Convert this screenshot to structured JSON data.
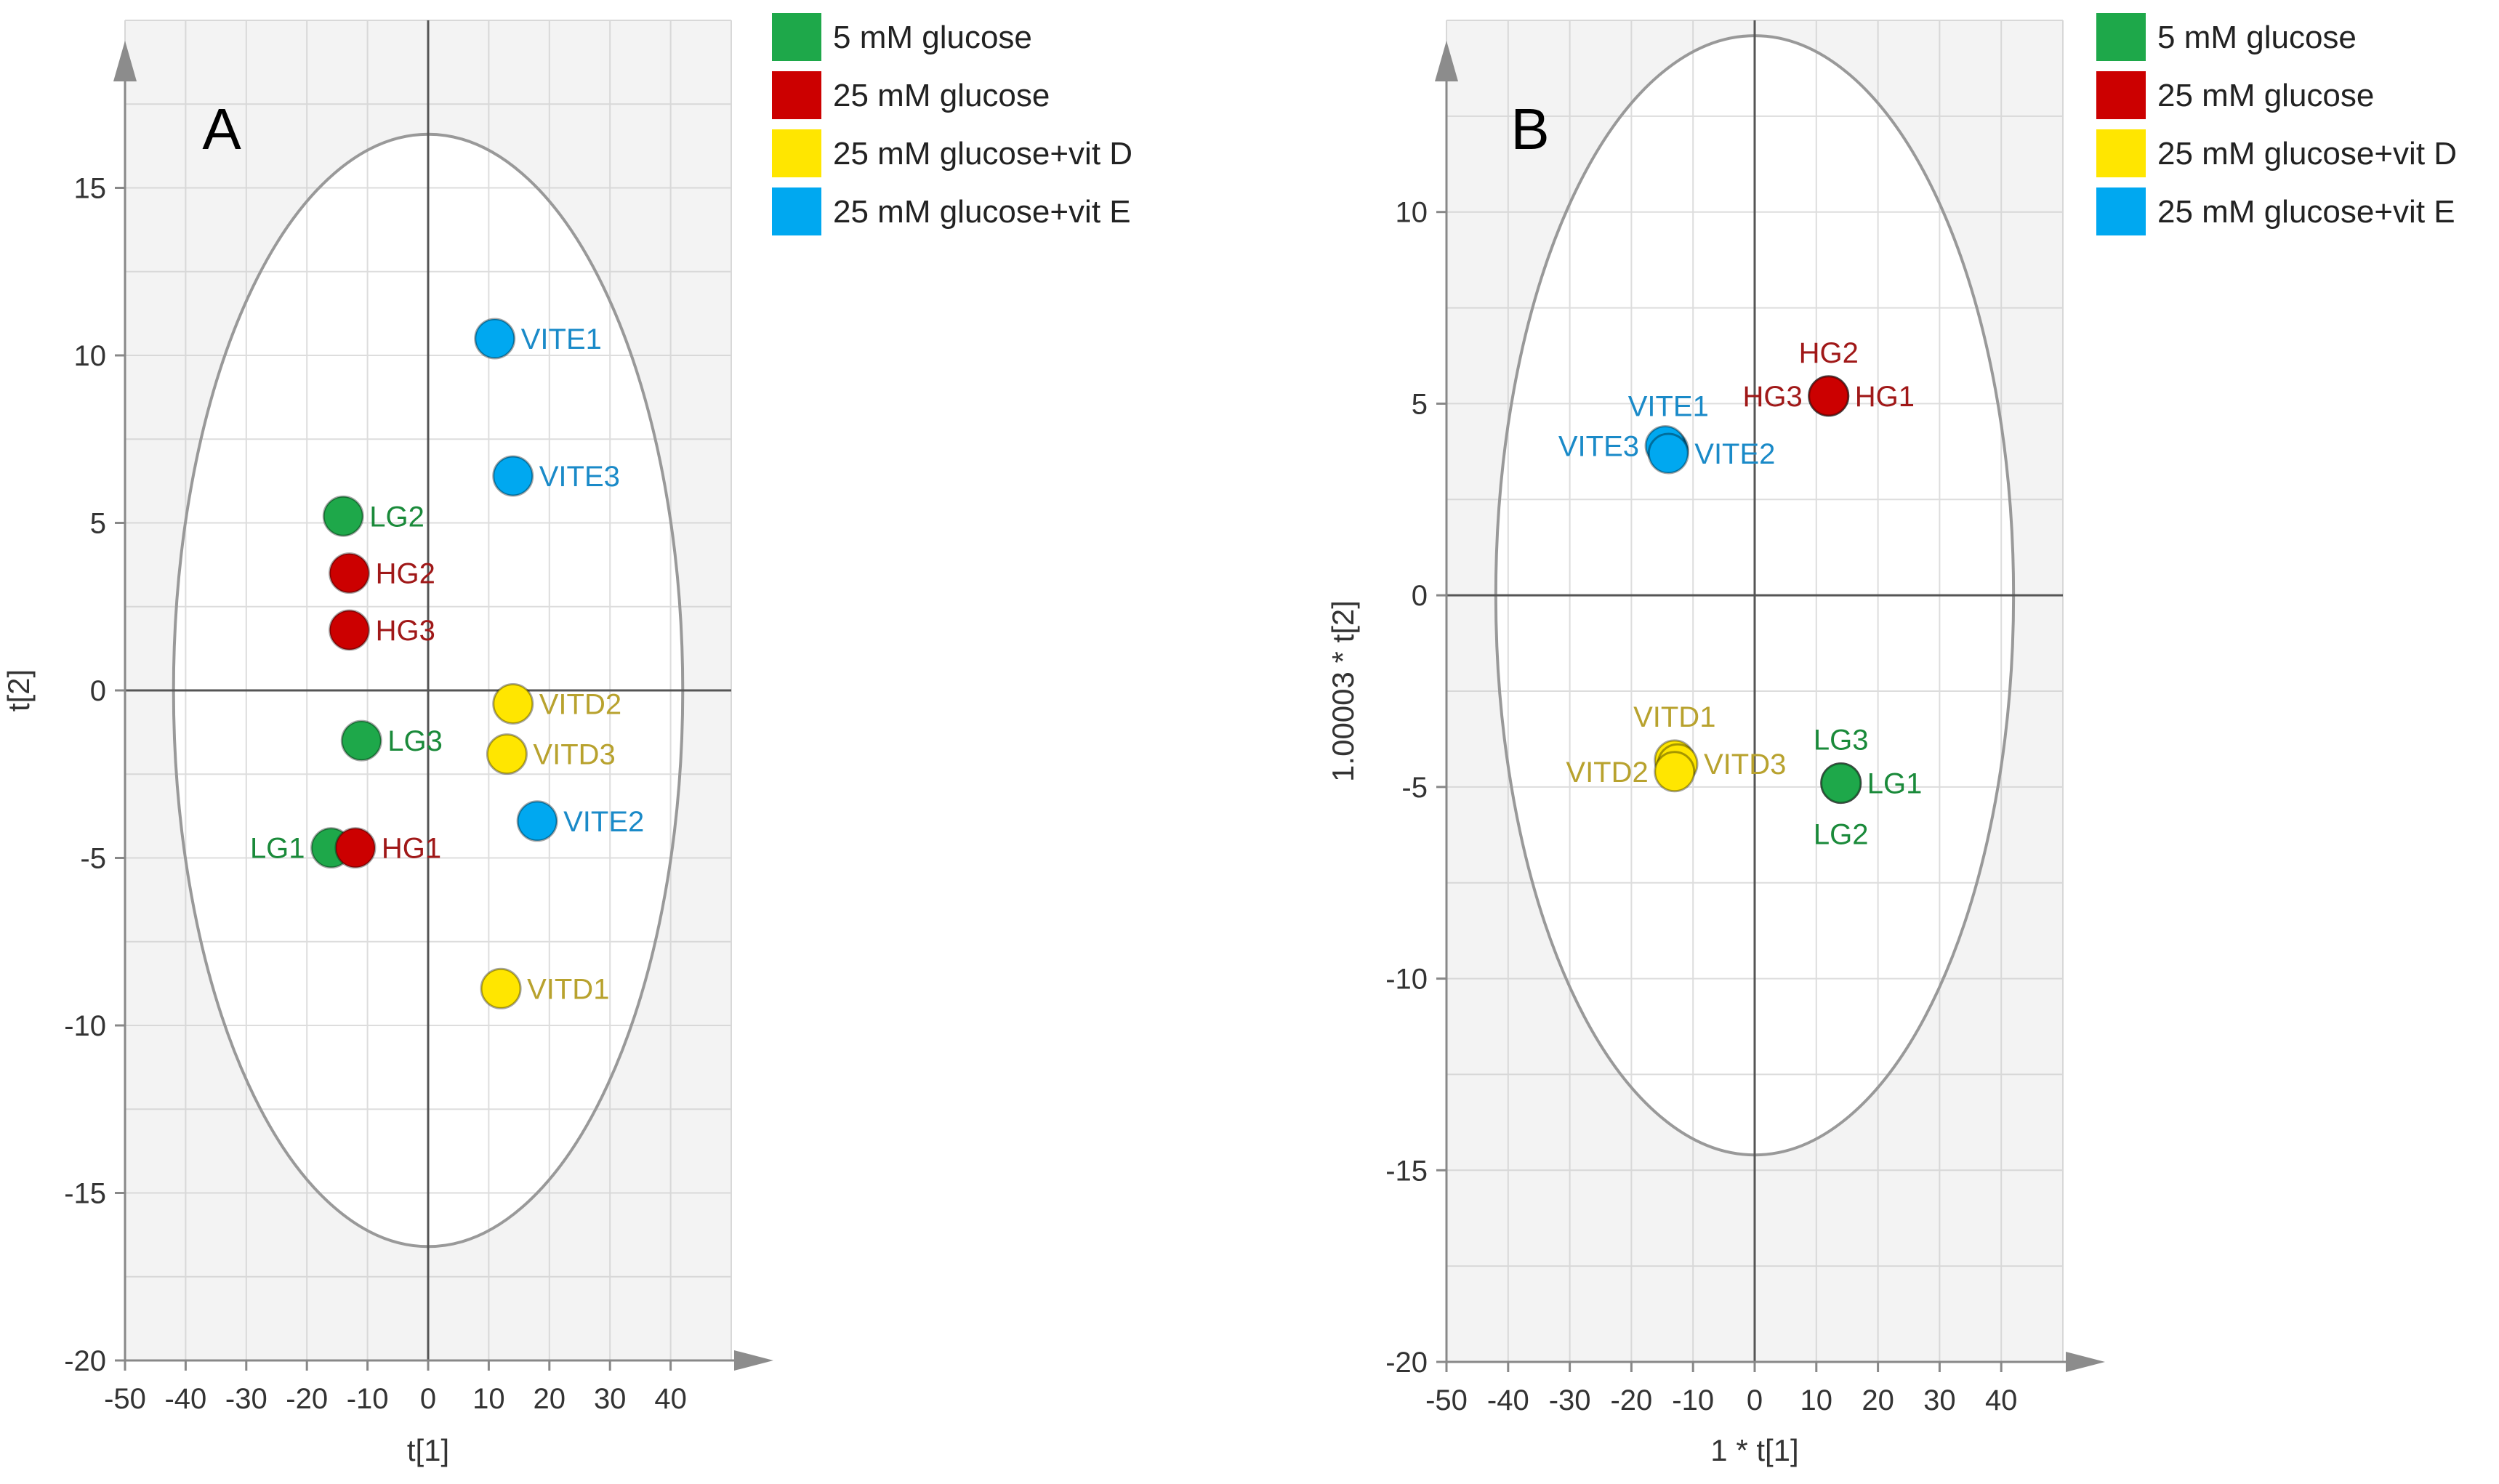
{
  "chart_data": [
    {
      "type": "scatter",
      "panel": "A",
      "title": "",
      "xlabel": "t[1]",
      "ylabel": "t[2]",
      "xlim": [
        -50,
        50
      ],
      "ylim": [
        -20,
        20
      ],
      "xticks": [
        -50,
        -40,
        -30,
        -20,
        -10,
        0,
        10,
        20,
        30,
        40
      ],
      "yticks": [
        -20,
        -15,
        -10,
        -5,
        0,
        5,
        10,
        15
      ],
      "grid": true,
      "ellipse": {
        "cx": 0,
        "cy": 0,
        "rx": 42,
        "ry": 16.6
      },
      "legend": {
        "position": "right",
        "entries": [
          {
            "label": "5 mM glucose",
            "color": "#1ea84a"
          },
          {
            "label": "25 mM glucose",
            "color": "#cc0000"
          },
          {
            "label": "25 mM glucose+vit D",
            "color": "#ffe600"
          },
          {
            "label": "25 mM glucose+vit E",
            "color": "#00a8f0"
          }
        ]
      },
      "series": [
        {
          "name": "5 mM glucose",
          "color": "#1ea84a",
          "label_color": "#1a8a3a",
          "points": [
            {
              "label": "LG2",
              "x": -14,
              "y": 5.2,
              "label_pos": "right"
            },
            {
              "label": "LG3",
              "x": -11,
              "y": -1.5,
              "label_pos": "right"
            },
            {
              "label": "LG1",
              "x": -16,
              "y": -4.7,
              "label_pos": "left"
            }
          ]
        },
        {
          "name": "25 mM glucose",
          "color": "#cc0000",
          "label_color": "#a01818",
          "points": [
            {
              "label": "HG2",
              "x": -13,
              "y": 3.5,
              "label_pos": "right"
            },
            {
              "label": "HG3",
              "x": -13,
              "y": 1.8,
              "label_pos": "right"
            },
            {
              "label": "HG1",
              "x": -12,
              "y": -4.7,
              "label_pos": "right"
            }
          ]
        },
        {
          "name": "25 mM glucose+vit D",
          "color": "#ffe600",
          "label_color": "#b8a22e",
          "points": [
            {
              "label": "VITD2",
              "x": 14,
              "y": -0.4,
              "label_pos": "right"
            },
            {
              "label": "VITD3",
              "x": 13,
              "y": -1.9,
              "label_pos": "right"
            },
            {
              "label": "VITD1",
              "x": 12,
              "y": -8.9,
              "label_pos": "right"
            }
          ]
        },
        {
          "name": "25 mM glucose+vit E",
          "color": "#00a8f0",
          "label_color": "#1a8ac8",
          "points": [
            {
              "label": "VITE1",
              "x": 11,
              "y": 10.5,
              "label_pos": "right"
            },
            {
              "label": "VITE3",
              "x": 14,
              "y": 6.4,
              "label_pos": "right"
            },
            {
              "label": "VITE2",
              "x": 18,
              "y": -3.9,
              "label_pos": "right"
            }
          ]
        }
      ]
    },
    {
      "type": "scatter",
      "panel": "B",
      "title": "",
      "xlabel": "1 * t[1]",
      "ylabel": "1.00003 * t[2]",
      "xlim": [
        -50,
        50
      ],
      "ylim": [
        -20,
        15
      ],
      "xticks": [
        -50,
        -40,
        -30,
        -20,
        -10,
        0,
        10,
        20,
        30,
        40
      ],
      "yticks": [
        -20,
        -15,
        -10,
        -5,
        0,
        5,
        10
      ],
      "grid": true,
      "ellipse": {
        "cx": 0,
        "cy": 0,
        "rx": 42,
        "ry": 14.6
      },
      "legend": {
        "position": "right",
        "entries": [
          {
            "label": "5 mM glucose",
            "color": "#1ea84a"
          },
          {
            "label": "25 mM glucose",
            "color": "#cc0000"
          },
          {
            "label": "25 mM glucose+vit D",
            "color": "#ffe600"
          },
          {
            "label": "25 mM glucose+vit E",
            "color": "#00a8f0"
          }
        ]
      },
      "series": [
        {
          "name": "5 mM glucose",
          "color": "#1ea84a",
          "label_color": "#1a8a3a",
          "points": [
            {
              "label": "LG3",
              "x": 14,
              "y": -4.9,
              "label_pos": "above"
            },
            {
              "label": "LG1",
              "x": 14,
              "y": -4.9,
              "label_pos": "right"
            },
            {
              "label": "LG2",
              "x": 14,
              "y": -4.9,
              "label_pos": "below"
            }
          ]
        },
        {
          "name": "25 mM glucose",
          "color": "#cc0000",
          "label_color": "#a01818",
          "points": [
            {
              "label": "HG2",
              "x": 12,
              "y": 5.2,
              "label_pos": "above"
            },
            {
              "label": "HG3",
              "x": 12,
              "y": 5.2,
              "label_pos": "left"
            },
            {
              "label": "HG1",
              "x": 12,
              "y": 5.2,
              "label_pos": "right"
            }
          ]
        },
        {
          "name": "25 mM glucose+vit D",
          "color": "#ffe600",
          "label_color": "#b8a22e",
          "points": [
            {
              "label": "VITD1",
              "x": -13,
              "y": -4.3,
              "label_pos": "above"
            },
            {
              "label": "VITD3",
              "x": -12.5,
              "y": -4.4,
              "label_pos": "right"
            },
            {
              "label": "VITD2",
              "x": -13,
              "y": -4.6,
              "label_pos": "left"
            }
          ]
        },
        {
          "name": "25 mM glucose+vit E",
          "color": "#00a8f0",
          "label_color": "#1a8ac8",
          "points": [
            {
              "label": "VITE1",
              "x": -14,
              "y": 3.8,
              "label_pos": "above"
            },
            {
              "label": "VITE3",
              "x": -14.5,
              "y": 3.9,
              "label_pos": "left"
            },
            {
              "label": "VITE2",
              "x": -14,
              "y": 3.7,
              "label_pos": "right"
            }
          ]
        }
      ]
    }
  ]
}
